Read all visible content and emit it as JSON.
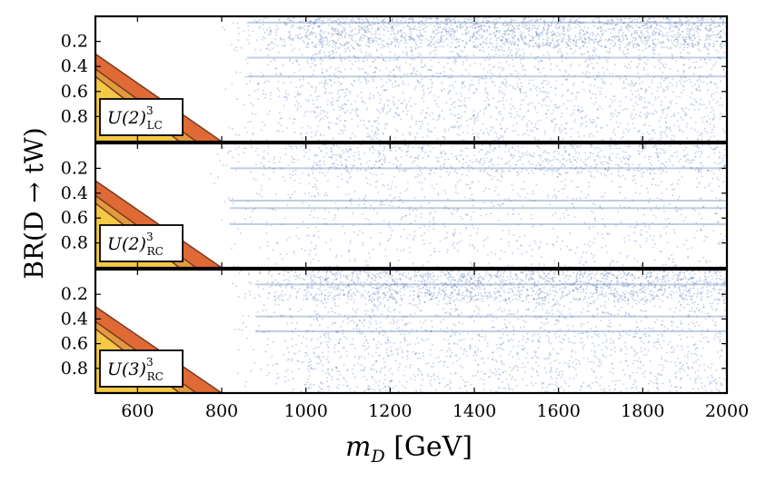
{
  "chart_data": {
    "type": "scatter",
    "xlabel": "m_D [GeV]",
    "ylabel": "BR(D → tW)",
    "xlim": [
      500,
      2000
    ],
    "ylim": [
      1.0,
      0.0
    ],
    "x_ticks": [
      600,
      800,
      1000,
      1200,
      1400,
      1600,
      1800,
      2000
    ],
    "y_ticks": [
      0.2,
      0.4,
      0.6,
      0.8
    ],
    "x_tick_labels": [
      "600",
      "800",
      "1000",
      "1200",
      "1400",
      "1600",
      "1800",
      "2000"
    ],
    "y_tick_labels": [
      "0.2",
      "0.4",
      "0.6",
      "0.8"
    ],
    "point_color": "#4a6fb0",
    "region_colors": {
      "outer": "#e06a35",
      "middle": "#e29a40",
      "inner": "#f5c845",
      "edge": "#7a3a20"
    },
    "panels": [
      {
        "label": "U(2)",
        "superscript": "3",
        "subscript": "LC",
        "excluded_regions": [
          {
            "name": "outer",
            "points": [
              [
                500,
                0.3
              ],
              [
                800,
                1.0
              ],
              [
                500,
                1.0
              ]
            ]
          },
          {
            "name": "middle",
            "points": [
              [
                500,
                0.42
              ],
              [
                740,
                1.0
              ],
              [
                500,
                1.0
              ]
            ]
          },
          {
            "name": "inner",
            "points": [
              [
                500,
                0.48
              ],
              [
                700,
                1.0
              ],
              [
                500,
                1.0
              ]
            ]
          }
        ],
        "density": {
          "x_onset": 860,
          "jump_at": 1000,
          "level": 1.0,
          "bands": [
            0.33,
            0.48,
            0.05
          ]
        }
      },
      {
        "label": "U(2)",
        "superscript": "3",
        "subscript": "RC",
        "excluded_regions": [
          {
            "name": "outer",
            "points": [
              [
                500,
                0.3
              ],
              [
                800,
                1.0
              ],
              [
                500,
                1.0
              ]
            ]
          },
          {
            "name": "middle",
            "points": [
              [
                500,
                0.42
              ],
              [
                740,
                1.0
              ],
              [
                500,
                1.0
              ]
            ]
          },
          {
            "name": "inner",
            "points": [
              [
                500,
                0.48
              ],
              [
                700,
                1.0
              ],
              [
                500,
                1.0
              ]
            ]
          }
        ],
        "density": {
          "x_onset": 820,
          "jump_at": 1000,
          "level": 0.45,
          "bands": [
            0.2,
            0.46,
            0.52,
            0.65
          ]
        }
      },
      {
        "label": "U(3)",
        "superscript": "3",
        "subscript": "RC",
        "excluded_regions": [
          {
            "name": "outer",
            "points": [
              [
                500,
                0.3
              ],
              [
                800,
                1.0
              ],
              [
                500,
                1.0
              ]
            ]
          },
          {
            "name": "middle",
            "points": [
              [
                500,
                0.42
              ],
              [
                740,
                1.0
              ],
              [
                500,
                1.0
              ]
            ]
          },
          {
            "name": "inner",
            "points": [
              [
                500,
                0.48
              ],
              [
                700,
                1.0
              ],
              [
                500,
                1.0
              ]
            ]
          }
        ],
        "density": {
          "x_onset": 880,
          "jump_at": 1000,
          "level": 0.9,
          "bands": [
            0.12,
            0.5,
            0.38
          ]
        }
      }
    ]
  }
}
